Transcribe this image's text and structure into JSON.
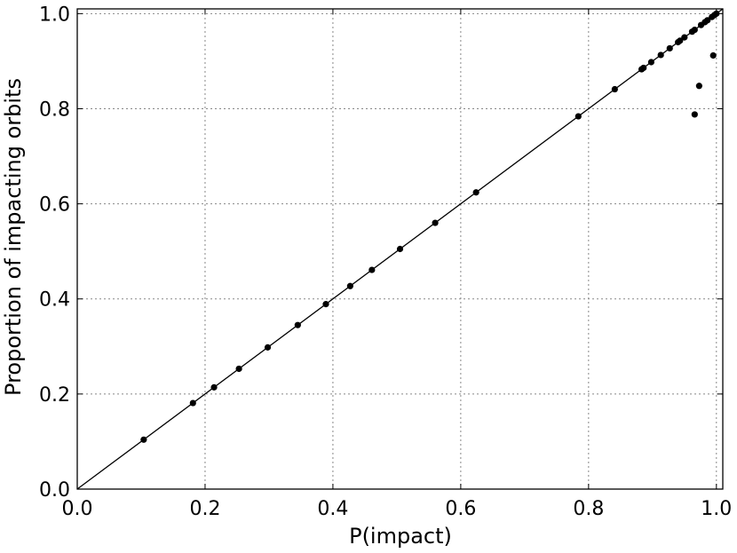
{
  "chart_data": {
    "type": "scatter",
    "title": "",
    "xlabel": "P(impact)",
    "ylabel": "Proportion of impacting orbits",
    "xlim": [
      0.0,
      1.01
    ],
    "ylim": [
      0.0,
      1.01
    ],
    "xticks": [
      "0.0",
      "0.2",
      "0.4",
      "0.6",
      "0.8",
      "1.0"
    ],
    "yticks": [
      "0.0",
      "0.2",
      "0.4",
      "0.6",
      "0.8",
      "1.0"
    ],
    "grid": true,
    "reference_line": {
      "from": [
        0,
        0
      ],
      "to": [
        1.01,
        1.01
      ]
    },
    "points": [
      {
        "x": 0.104,
        "y": 0.104
      },
      {
        "x": 0.181,
        "y": 0.181
      },
      {
        "x": 0.214,
        "y": 0.214
      },
      {
        "x": 0.253,
        "y": 0.253
      },
      {
        "x": 0.298,
        "y": 0.298
      },
      {
        "x": 0.345,
        "y": 0.345
      },
      {
        "x": 0.389,
        "y": 0.389
      },
      {
        "x": 0.427,
        "y": 0.427
      },
      {
        "x": 0.461,
        "y": 0.461
      },
      {
        "x": 0.505,
        "y": 0.505
      },
      {
        "x": 0.56,
        "y": 0.56
      },
      {
        "x": 0.624,
        "y": 0.624
      },
      {
        "x": 0.784,
        "y": 0.784
      },
      {
        "x": 0.841,
        "y": 0.841
      },
      {
        "x": 0.883,
        "y": 0.883
      },
      {
        "x": 0.886,
        "y": 0.886
      },
      {
        "x": 0.898,
        "y": 0.898
      },
      {
        "x": 0.913,
        "y": 0.913
      },
      {
        "x": 0.927,
        "y": 0.927
      },
      {
        "x": 0.94,
        "y": 0.94
      },
      {
        "x": 0.943,
        "y": 0.943
      },
      {
        "x": 0.95,
        "y": 0.95
      },
      {
        "x": 0.962,
        "y": 0.962
      },
      {
        "x": 0.966,
        "y": 0.966
      },
      {
        "x": 0.976,
        "y": 0.976
      },
      {
        "x": 0.982,
        "y": 0.982
      },
      {
        "x": 0.986,
        "y": 0.986
      },
      {
        "x": 0.993,
        "y": 0.993
      },
      {
        "x": 0.997,
        "y": 0.997
      },
      {
        "x": 1.0,
        "y": 1.0
      },
      {
        "x": 0.966,
        "y": 0.788
      },
      {
        "x": 0.973,
        "y": 0.848
      },
      {
        "x": 0.995,
        "y": 0.912
      }
    ]
  }
}
